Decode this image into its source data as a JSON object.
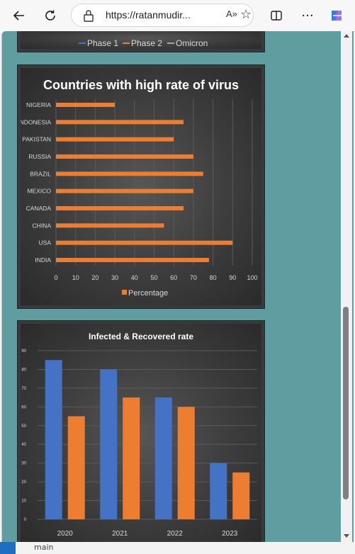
{
  "browser": {
    "url": "https://ratanmudir...",
    "read_aloud_label": "A»",
    "status_text": "main"
  },
  "colors": {
    "phase1": "#4472c4",
    "phase2": "#ed7d31",
    "omicron": "#a5a5a5",
    "page_background": "#5f9ea0"
  },
  "top_legend": [
    "Phase 1",
    "Phase 2",
    "Omicron"
  ],
  "chart_data": [
    {
      "type": "bar",
      "orientation": "horizontal",
      "title": "Countries with high rate of virus",
      "categories": [
        "NIGERIA",
        "INDONESIA",
        "PAKISTAN",
        "RUSSIA",
        "BRAZIL",
        "MEXICO",
        "CANADA",
        "CHINA",
        "USA",
        "INDIA"
      ],
      "series": [
        {
          "name": "Percentage",
          "values": [
            30,
            65,
            60,
            70,
            75,
            70,
            65,
            55,
            90,
            78
          ]
        }
      ],
      "x_ticks": [
        "0",
        "10",
        "20",
        "30",
        "40",
        "50",
        "60",
        "70",
        "80",
        "90",
        "100"
      ],
      "xlim": [
        0,
        100
      ],
      "grid": true,
      "legend": "bottom"
    },
    {
      "type": "bar",
      "title": "Infected & Recovered rate",
      "categories": [
        "2020",
        "2021",
        "2022",
        "2023"
      ],
      "series": [
        {
          "values": [
            85,
            80,
            65,
            30
          ]
        },
        {
          "values": [
            55,
            65,
            60,
            25
          ]
        }
      ],
      "y_ticks": [
        "0",
        "10",
        "20",
        "30",
        "40",
        "50",
        "60",
        "70",
        "80",
        "90"
      ],
      "ylim": [
        0,
        90
      ],
      "grid": true
    }
  ]
}
